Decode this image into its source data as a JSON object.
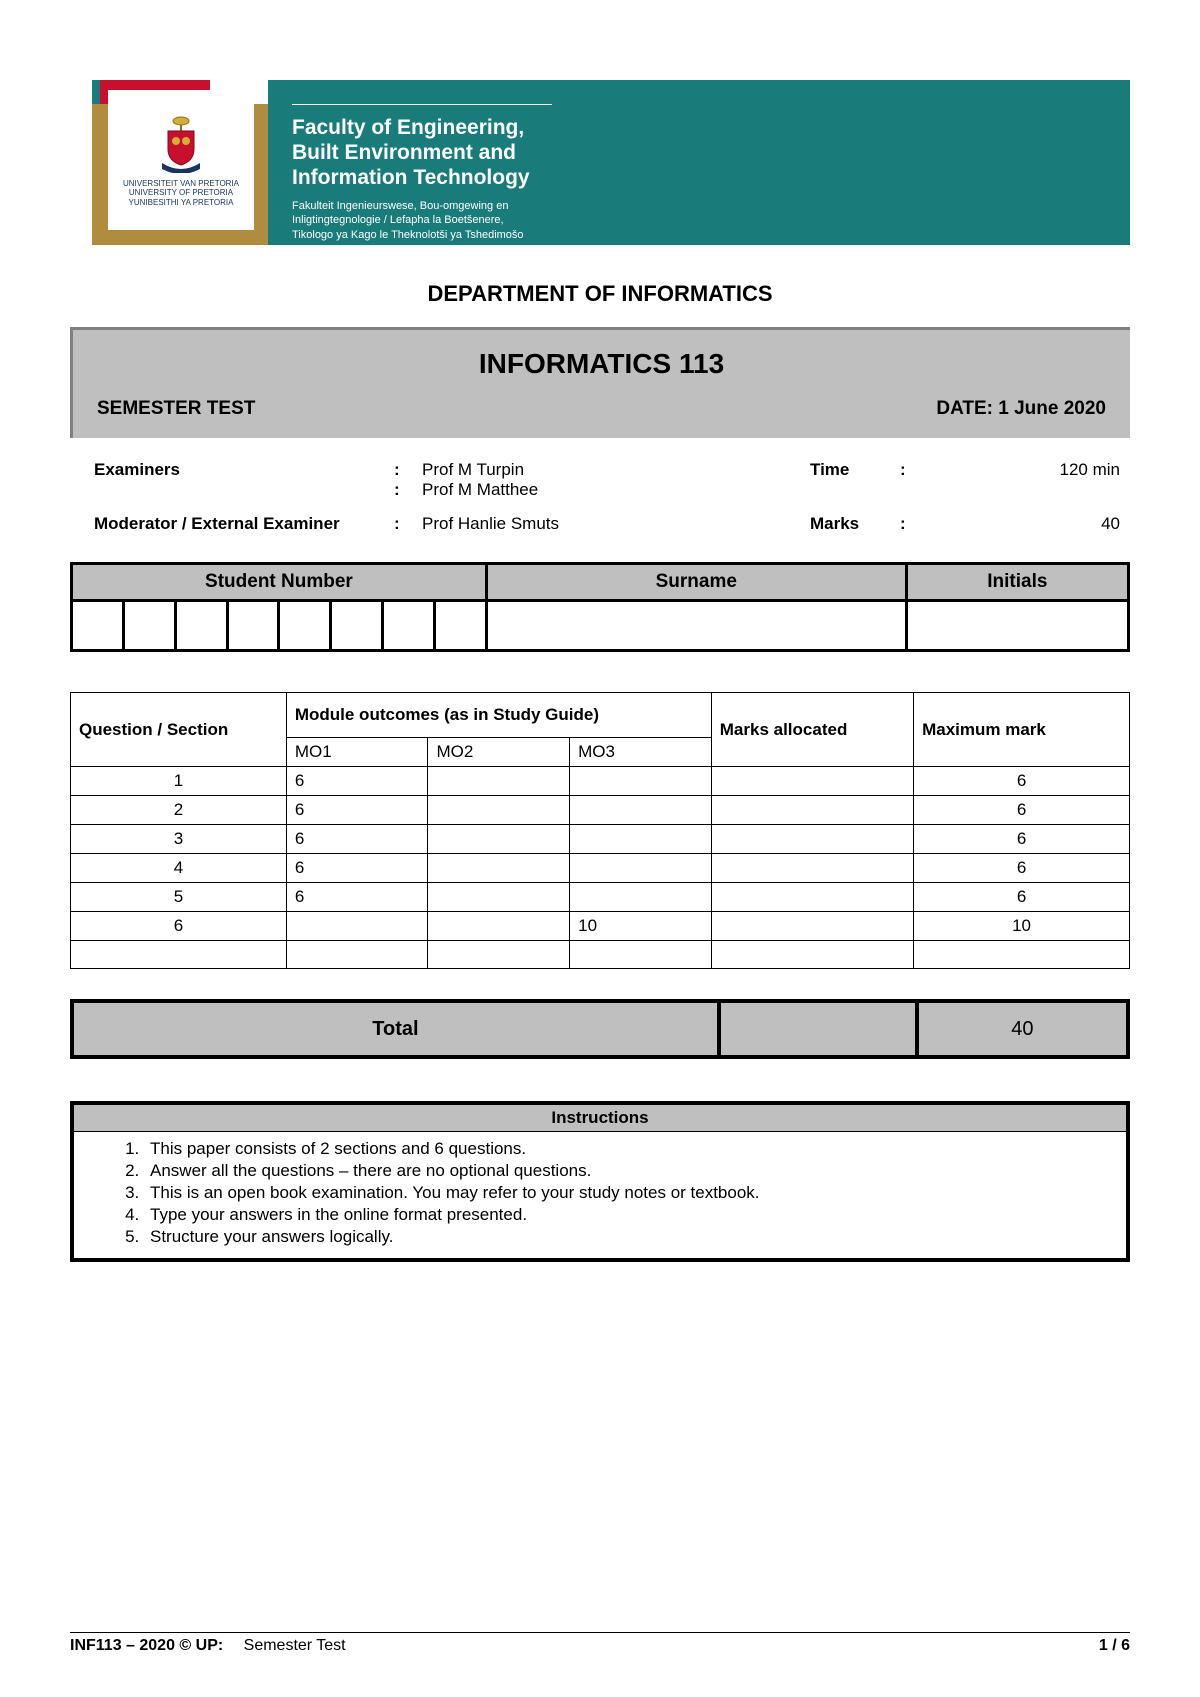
{
  "colors": {
    "teal": "#1a7b7b",
    "gold": "#b08c3e",
    "red": "#c8102e",
    "grey": "#bfbfbf",
    "black": "#000000",
    "white": "#ffffff"
  },
  "banner": {
    "logo_line1": "UNIVERSITEIT VAN PRETORIA",
    "logo_line2": "UNIVERSITY OF PRETORIA",
    "logo_line3": "YUNIBESITHI YA PRETORIA",
    "faculty_line1": "Faculty of Engineering,",
    "faculty_line2": "Built Environment and",
    "faculty_line3": "Information Technology",
    "sub_line1": "Fakulteit Ingenieurswese, Bou-omgewing en",
    "sub_line2": "Inligtingtegnologie / Lefapha la Boetšenere,",
    "sub_line3": "Tikologo ya Kago le Theknolotši ya Tshedimošo"
  },
  "department": "DEPARTMENT OF INFORMATICS",
  "course": "INFORMATICS 113",
  "test_label": "SEMESTER TEST",
  "date_label": "DATE: 1 June 2020",
  "examiners": {
    "label": "Examiners",
    "names": [
      "Prof M Turpin",
      "Prof M Matthee"
    ]
  },
  "moderator": {
    "label": "Moderator / External Examiner",
    "name": "Prof Hanlie Smuts"
  },
  "time": {
    "label": "Time",
    "value": "120 min"
  },
  "marks": {
    "label": "Marks",
    "value": "40"
  },
  "student_table": {
    "student_number": "Student Number",
    "surname": "Surname",
    "initials": "Initials"
  },
  "outcomes": {
    "q_header": "Question / Section",
    "mo_header": "Module outcomes (as in Study Guide)",
    "ma_header": "Marks allocated",
    "mm_header": "Maximum mark",
    "mo_cols": [
      "MO1",
      "MO2",
      "MO3"
    ],
    "rows": [
      {
        "q": "1",
        "mo1": "6",
        "mo2": "",
        "mo3": "",
        "ma": "",
        "mm": "6"
      },
      {
        "q": "2",
        "mo1": "6",
        "mo2": "",
        "mo3": "",
        "ma": "",
        "mm": "6"
      },
      {
        "q": "3",
        "mo1": "6",
        "mo2": "",
        "mo3": "",
        "ma": "",
        "mm": "6"
      },
      {
        "q": "4",
        "mo1": "6",
        "mo2": "",
        "mo3": "",
        "ma": "",
        "mm": "6"
      },
      {
        "q": "5",
        "mo1": "6",
        "mo2": "",
        "mo3": "",
        "ma": "",
        "mm": "6"
      },
      {
        "q": "6",
        "mo1": "",
        "mo2": "",
        "mo3": "10",
        "ma": "",
        "mm": "10"
      },
      {
        "q": "",
        "mo1": "",
        "mo2": "",
        "mo3": "",
        "ma": "",
        "mm": ""
      }
    ]
  },
  "total": {
    "label": "Total",
    "value": "40"
  },
  "instructions": {
    "header": "Instructions",
    "items": [
      "This paper consists of 2 sections and 6 questions.",
      "Answer all the questions – there are no optional questions.",
      "This is an open book examination.  You may refer to your study notes or textbook.",
      "Type your answers in the online format presented.",
      "Structure your answers logically."
    ]
  },
  "footer": {
    "left_bold": "INF113 – 2020 © UP:",
    "left_light": "Semester Test",
    "right": "1 / 6"
  }
}
